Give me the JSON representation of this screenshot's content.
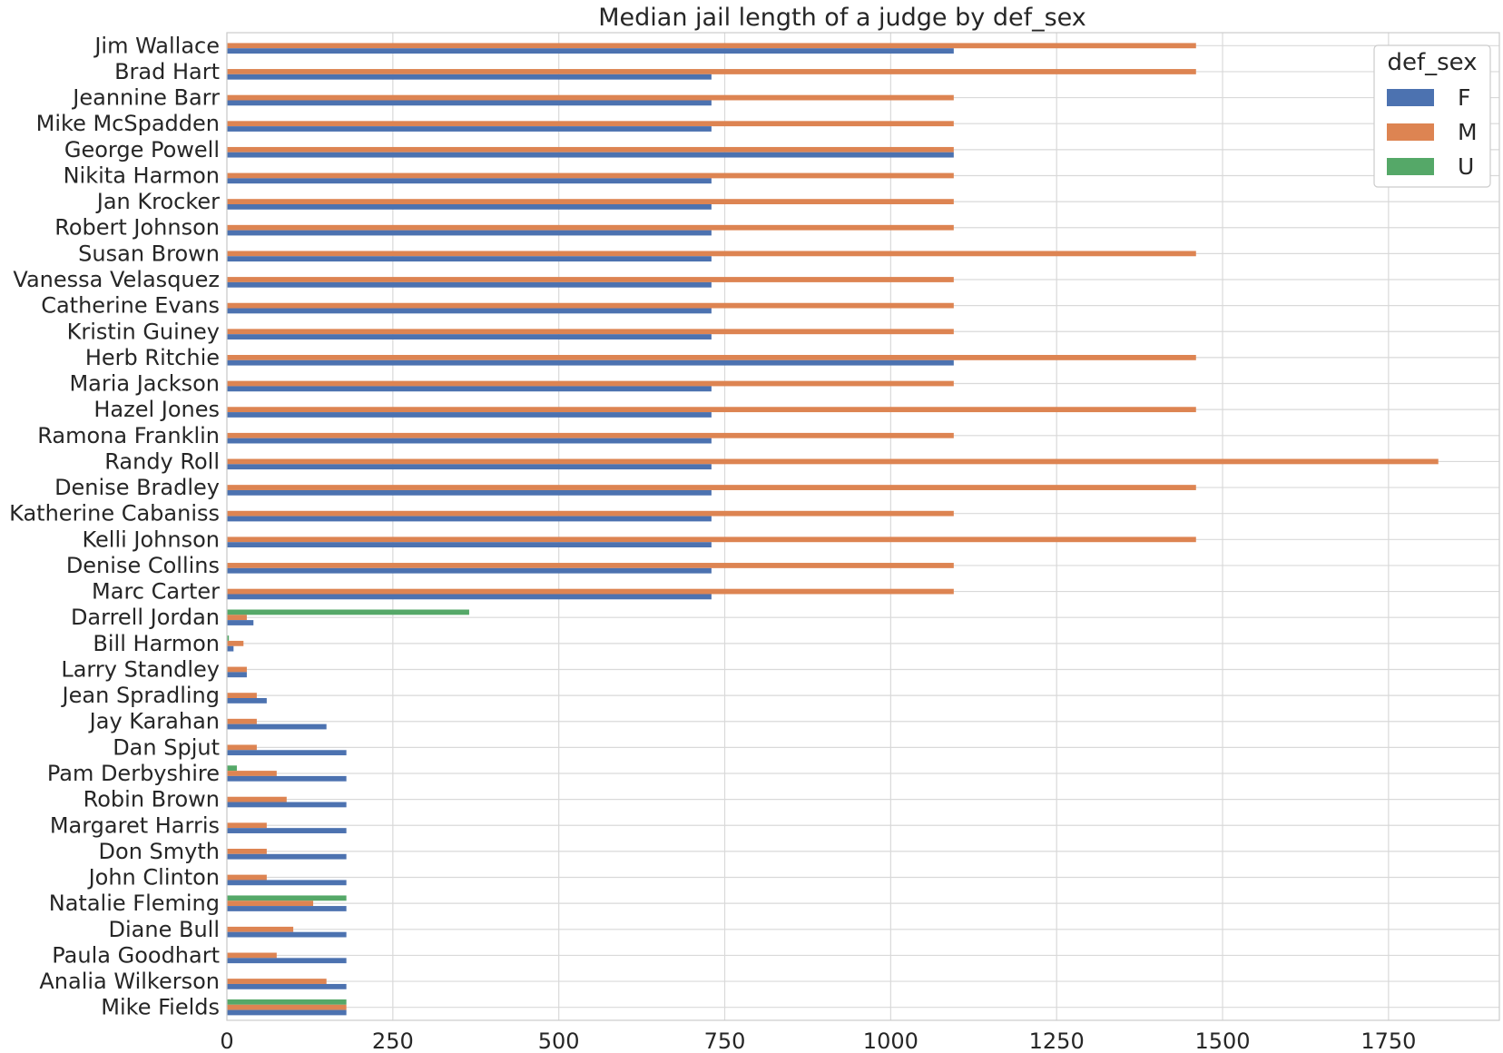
{
  "chart_data": {
    "type": "bar",
    "orientation": "horizontal",
    "title": "Median jail length of a judge by def_sex",
    "xlabel": "",
    "ylabel": "",
    "xlim": [
      0,
      1917
    ],
    "xticks": [
      0,
      250,
      500,
      750,
      1000,
      1250,
      1500,
      1750
    ],
    "grid": true,
    "legend": {
      "title": "def_sex",
      "placement": "top-right"
    },
    "categories": [
      "Jim Wallace",
      "Brad Hart",
      "Jeannine Barr",
      "Mike McSpadden",
      "George Powell",
      "Nikita Harmon",
      "Jan Krocker",
      "Robert Johnson",
      "Susan Brown",
      "Vanessa Velasquez",
      "Catherine Evans",
      "Kristin Guiney",
      "Herb Ritchie",
      "Maria Jackson",
      "Hazel Jones",
      "Ramona Franklin",
      "Randy Roll",
      "Denise Bradley",
      "Katherine Cabaniss",
      "Kelli Johnson",
      "Denise Collins",
      "Marc Carter",
      "Darrell Jordan",
      "Bill Harmon",
      "Larry Standley",
      "Jean Spradling",
      "Jay Karahan",
      "Dan Spjut",
      "Pam Derbyshire",
      "Robin Brown",
      "Margaret Harris",
      "Don Smyth",
      "John Clinton",
      "Natalie Fleming",
      "Diane Bull",
      "Paula Goodhart",
      "Analia Wilkerson",
      "Mike Fields"
    ],
    "series": [
      {
        "name": "F",
        "color": "#4c72b0",
        "values": [
          1095,
          730,
          730,
          730,
          1095,
          730,
          730,
          730,
          730,
          730,
          730,
          730,
          1095,
          730,
          730,
          730,
          730,
          730,
          730,
          730,
          730,
          730,
          40,
          10,
          30,
          60,
          150,
          180,
          180,
          180,
          180,
          180,
          180,
          180,
          180,
          180,
          180,
          180
        ]
      },
      {
        "name": "M",
        "color": "#dd8452",
        "values": [
          1460,
          1460,
          1095,
          1095,
          1095,
          1095,
          1095,
          1095,
          1460,
          1095,
          1095,
          1095,
          1460,
          1095,
          1460,
          1095,
          1825,
          1460,
          1095,
          1460,
          1095,
          1095,
          30,
          25,
          30,
          45,
          45,
          45,
          75,
          90,
          60,
          60,
          60,
          130,
          100,
          75,
          150,
          180
        ]
      },
      {
        "name": "U",
        "color": "#55a868",
        "values": [
          0,
          0,
          0,
          0,
          0,
          0,
          0,
          0,
          0,
          0,
          0,
          0,
          0,
          0,
          0,
          0,
          0,
          0,
          0,
          0,
          0,
          0,
          365,
          3,
          0,
          0,
          0,
          0,
          15,
          0,
          0,
          0,
          0,
          180,
          0,
          0,
          0,
          180
        ]
      }
    ]
  }
}
